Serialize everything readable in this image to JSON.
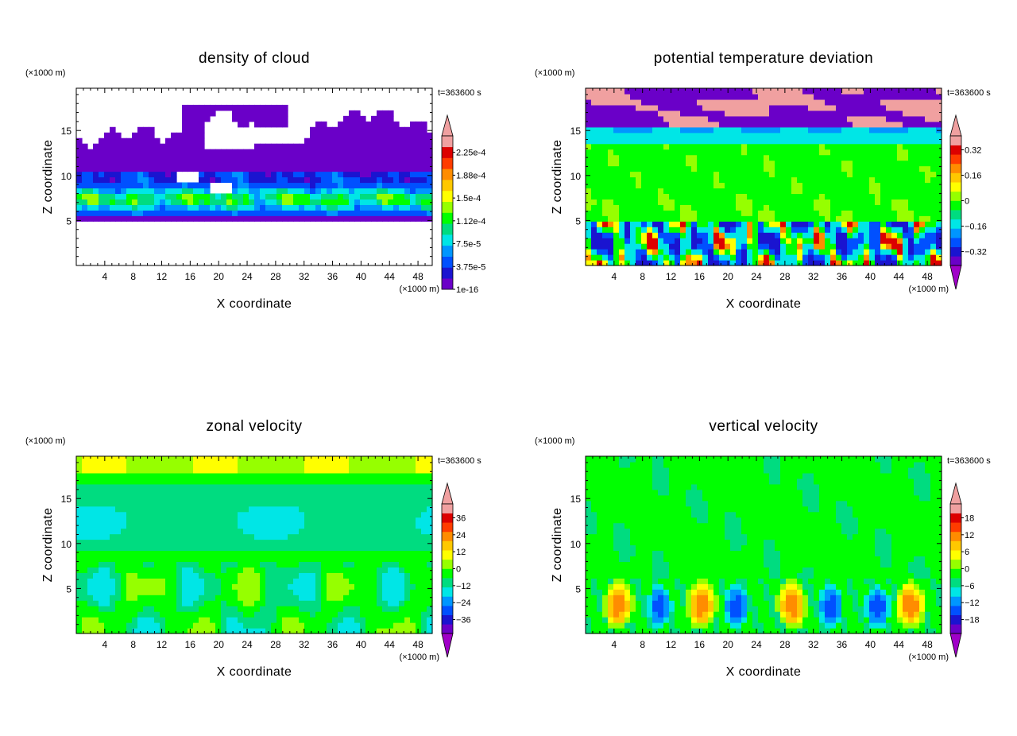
{
  "chart_data": [
    {
      "type": "heatmap",
      "title": "density of cloud",
      "xlabel": "X coordinate",
      "ylabel": "Z coordinate",
      "x_unit": "(×1000 m)",
      "y_unit": "(×1000 m)",
      "time_label": "t=363600 s",
      "xlim": [
        0,
        50
      ],
      "ylim": [
        0,
        19.7
      ],
      "xticks": [
        "4",
        "8",
        "12",
        "16",
        "20",
        "24",
        "28",
        "32",
        "36",
        "40",
        "44",
        "48"
      ],
      "yticks": [
        "5",
        "10",
        "15"
      ],
      "colorbar_labels": [
        "1e-16",
        "3.75e-5",
        "7.5e-5",
        "1.12e-4",
        "1.5e-4",
        "1.88e-4",
        "2.25e-4"
      ],
      "colorbar_colors": [
        "#6a00c8",
        "#1a14d0",
        "#0050ff",
        "#0096ff",
        "#00e6e6",
        "#00dc80",
        "#00ff00",
        "#96ff00",
        "#ffff00",
        "#ffc800",
        "#ff8c00",
        "#ff3c00",
        "#dc0000",
        "#f0a0a0"
      ],
      "colorbar_extend": "max"
    },
    {
      "type": "heatmap",
      "title": "potential temperature deviation",
      "xlabel": "X coordinate",
      "ylabel": "Z coordinate",
      "x_unit": "(×1000 m)",
      "y_unit": "(×1000 m)",
      "time_label": "t=363600 s",
      "xlim": [
        0,
        50
      ],
      "ylim": [
        0,
        19.7
      ],
      "xticks": [
        "4",
        "8",
        "12",
        "16",
        "20",
        "24",
        "28",
        "32",
        "36",
        "40",
        "44",
        "48"
      ],
      "yticks": [
        "5",
        "10",
        "15"
      ],
      "colorbar_labels": [
        "−0.32",
        "−0.16",
        "0",
        "0.16",
        "0.32"
      ],
      "colorbar_colors": [
        "#6a00c8",
        "#1a14d0",
        "#0050ff",
        "#0096ff",
        "#00e6e6",
        "#00dc80",
        "#00ff00",
        "#96ff00",
        "#ffff00",
        "#ffc800",
        "#ff8c00",
        "#ff3c00",
        "#dc0000",
        "#f0a0a0"
      ],
      "colorbar_extend": "both"
    },
    {
      "type": "heatmap",
      "title": "zonal velocity",
      "xlabel": "X coordinate",
      "ylabel": "Z coordinate",
      "x_unit": "(×1000 m)",
      "y_unit": "(×1000 m)",
      "time_label": "t=363600 s",
      "xlim": [
        0,
        50
      ],
      "ylim": [
        0,
        19.7
      ],
      "xticks": [
        "4",
        "8",
        "12",
        "16",
        "20",
        "24",
        "28",
        "32",
        "36",
        "40",
        "44",
        "48"
      ],
      "yticks": [
        "5",
        "10",
        "15"
      ],
      "colorbar_labels": [
        "−36",
        "−24",
        "−12",
        "0",
        "12",
        "24",
        "36"
      ],
      "colorbar_colors": [
        "#6a00c8",
        "#1a14d0",
        "#0050ff",
        "#0096ff",
        "#00e6e6",
        "#00dc80",
        "#00ff00",
        "#96ff00",
        "#ffff00",
        "#ffc800",
        "#ff8c00",
        "#ff3c00",
        "#dc0000",
        "#f0a0a0"
      ],
      "colorbar_extend": "both"
    },
    {
      "type": "heatmap",
      "title": "vertical velocity",
      "xlabel": "X coordinate",
      "ylabel": "Z coordinate",
      "x_unit": "(×1000 m)",
      "y_unit": "(×1000 m)",
      "time_label": "t=363600 s",
      "xlim": [
        0,
        50
      ],
      "ylim": [
        0,
        19.7
      ],
      "xticks": [
        "4",
        "8",
        "12",
        "16",
        "20",
        "24",
        "28",
        "32",
        "36",
        "40",
        "44",
        "48"
      ],
      "yticks": [
        "5",
        "10",
        "15"
      ],
      "colorbar_labels": [
        "−18",
        "−12",
        "−6",
        "0",
        "6",
        "12",
        "18"
      ],
      "colorbar_colors": [
        "#6a00c8",
        "#1a14d0",
        "#0050ff",
        "#0096ff",
        "#00e6e6",
        "#00dc80",
        "#00ff00",
        "#96ff00",
        "#ffff00",
        "#ffc800",
        "#ff8c00",
        "#ff3c00",
        "#dc0000",
        "#f0a0a0"
      ],
      "colorbar_extend": "both"
    }
  ]
}
